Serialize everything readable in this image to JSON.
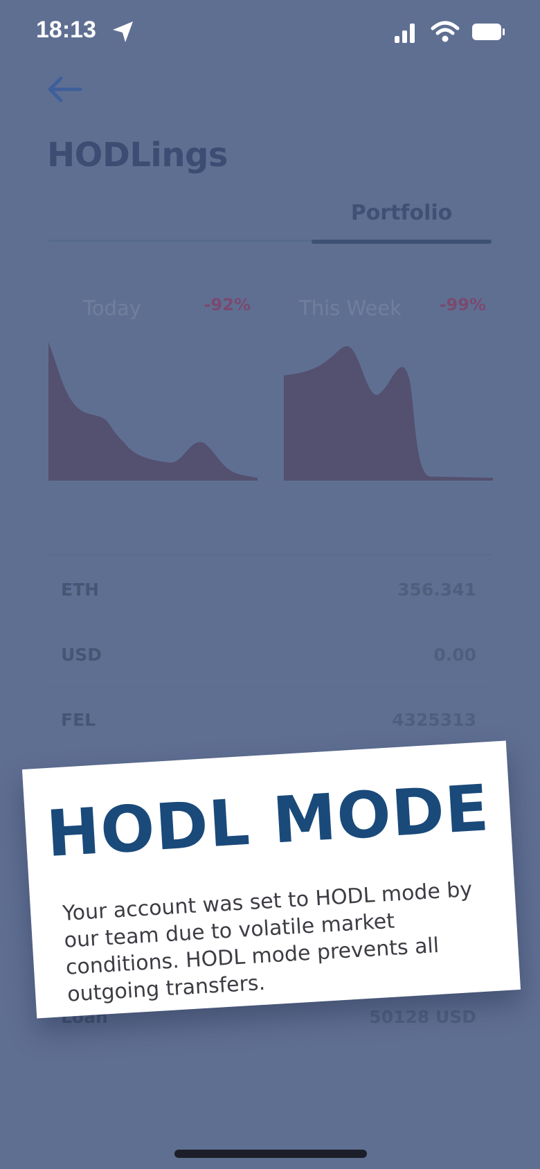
{
  "status_bar": {
    "time": "18:13",
    "icons": [
      "location-arrow-icon",
      "signal-icon",
      "wifi-icon",
      "battery-icon"
    ]
  },
  "header": {
    "back_icon": "back-arrow-icon",
    "title": "HODLings"
  },
  "tabs": {
    "portfolio_label": "Portfolio"
  },
  "charts": [
    {
      "label": "Today",
      "change": "-92%"
    },
    {
      "label": "This Week",
      "change": "-99%"
    }
  ],
  "holdings": [
    {
      "symbol": "ETH",
      "value": "356.341"
    },
    {
      "symbol": "USD",
      "value": "0.00"
    },
    {
      "symbol": "FEL",
      "value": "4325313"
    }
  ],
  "loan": {
    "label": "Loan",
    "value": "50128 USD"
  },
  "modal": {
    "title": "HODL MODE",
    "body": "Your account was set to HODL mode by our team due to volatile market conditions. HODL mode prevents all outgoing transfers."
  },
  "colors": {
    "overlay_bg": "#5f6f92",
    "chart_fill": "#54506f",
    "negative": "#7a4a6f",
    "modal_title": "#1a4a7a"
  }
}
